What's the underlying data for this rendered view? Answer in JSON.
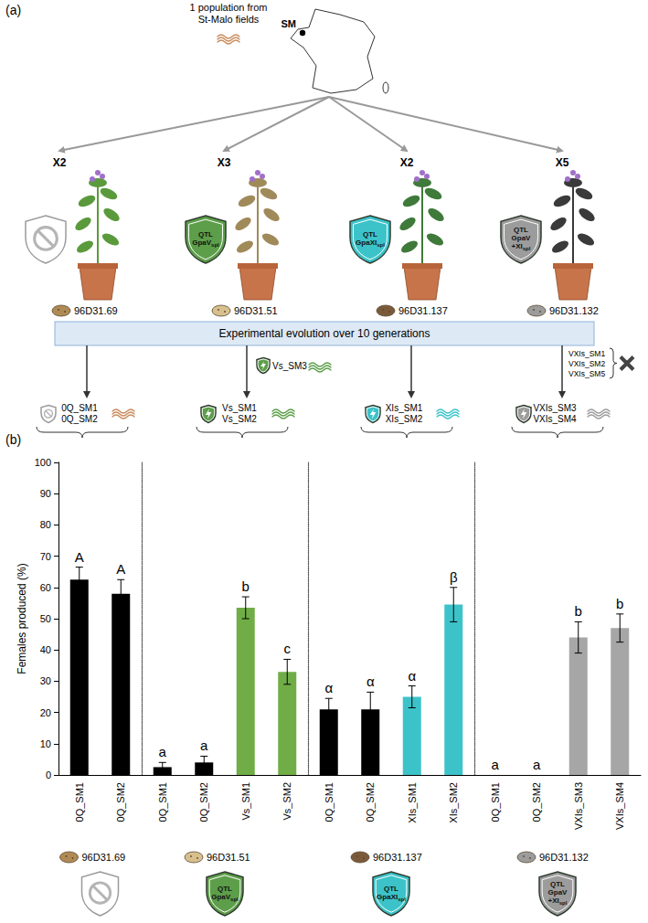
{
  "panel_a": {
    "label": "(a)",
    "source": [
      "1 population from",
      "St-Malo fields"
    ],
    "site": "SM",
    "experiment": "Experimental evolution over 10 generations",
    "groups": [
      {
        "replicates": "X2",
        "genotype": "96D31.69",
        "shield": null,
        "color": "#c98b5e",
        "populations": [
          "0Q_SM1",
          "0Q_SM2"
        ]
      },
      {
        "replicates": "X3",
        "genotype": "96D31.51",
        "shield": {
          "lines": [
            "QTL",
            "GpaV"
          ],
          "sub": "spl"
        },
        "color": "#5d9e4a",
        "populations": [
          "Vs_SM1",
          "Vs_SM2"
        ],
        "side_populations": [
          "Vs_SM3"
        ]
      },
      {
        "replicates": "X2",
        "genotype": "96D31.137",
        "shield": {
          "lines": [
            "QTL",
            "GpaXI"
          ],
          "sub": "spl"
        },
        "color": "#3cc3c9",
        "populations": [
          "XIs_SM1",
          "XIs_SM2"
        ]
      },
      {
        "replicates": "X5",
        "genotype": "96D31.132",
        "shield": {
          "lines": [
            "QTL",
            "GpaV",
            "+XI"
          ],
          "sub": "spl"
        },
        "color": "#9c9c9c",
        "populations": [
          "VXIs_SM3",
          "VXIs_SM4"
        ],
        "extinct_populations": [
          "VXIs_SM1",
          "VXIs_SM2",
          "VXIs_SM5"
        ]
      }
    ]
  },
  "panel_b": {
    "label": "(b)"
  },
  "chart_data": [
    {
      "type": "bar",
      "title": "96D31.69",
      "ylabel": "Females produced (%)",
      "categories": [
        "0Q_SM1",
        "0Q_SM2"
      ],
      "values": [
        62.5,
        58
      ],
      "errors": [
        4,
        4.5
      ],
      "letters": [
        "A",
        "A"
      ],
      "colors": [
        "#000000",
        "#000000"
      ],
      "ylim": [
        0,
        100
      ],
      "yticks": [
        0,
        10,
        20,
        30,
        40,
        50,
        60,
        70,
        80,
        90,
        100
      ],
      "grid": false
    },
    {
      "type": "bar",
      "title": "96D31.51",
      "categories": [
        "0Q_SM1",
        "0Q_SM2",
        "Vs_SM1",
        "Vs_SM2"
      ],
      "values": [
        2.5,
        4,
        53.5,
        33
      ],
      "errors": [
        1.5,
        2,
        3.5,
        4
      ],
      "letters": [
        "a",
        "a",
        "b",
        "c"
      ],
      "colors": [
        "#000000",
        "#000000",
        "#70ad47",
        "#70ad47"
      ],
      "ylim": [
        0,
        100
      ],
      "yticks": [
        0,
        10,
        20,
        30,
        40,
        50,
        60,
        70,
        80,
        90,
        100
      ],
      "grid": false,
      "tick_labels": "x"
    },
    {
      "type": "bar",
      "title": "96D31.137",
      "categories": [
        "0Q_SM1",
        "0Q_SM2",
        "XIs_SM1",
        "XIs_SM2"
      ],
      "values": [
        21,
        21,
        25,
        54.5
      ],
      "errors": [
        3.5,
        5.5,
        3.5,
        5.5
      ],
      "letters": [
        "α",
        "α",
        "α",
        "β"
      ],
      "colors": [
        "#000000",
        "#000000",
        "#3cc3c9",
        "#3cc3c9"
      ],
      "ylim": [
        0,
        100
      ],
      "yticks": [
        0,
        10,
        20,
        30,
        40,
        50,
        60,
        70,
        80,
        90,
        100
      ],
      "grid": false,
      "tick_labels": "x"
    },
    {
      "type": "bar",
      "title": "96D31.132",
      "categories": [
        "0Q_SM1",
        "0Q_SM2",
        "VXIs_SM3",
        "VXIs_SM4"
      ],
      "values": [
        0,
        0,
        44,
        47
      ],
      "errors": [
        0,
        0,
        5,
        4.5
      ],
      "letters": [
        "a",
        "a",
        "b",
        "b"
      ],
      "colors": [
        "#000000",
        "#000000",
        "#a6a6a6",
        "#a6a6a6"
      ],
      "ylim": [
        0,
        100
      ],
      "yticks": [
        0,
        10,
        20,
        30,
        40,
        50,
        60,
        70,
        80,
        90,
        100
      ],
      "grid": false,
      "tick_labels": "x"
    }
  ]
}
